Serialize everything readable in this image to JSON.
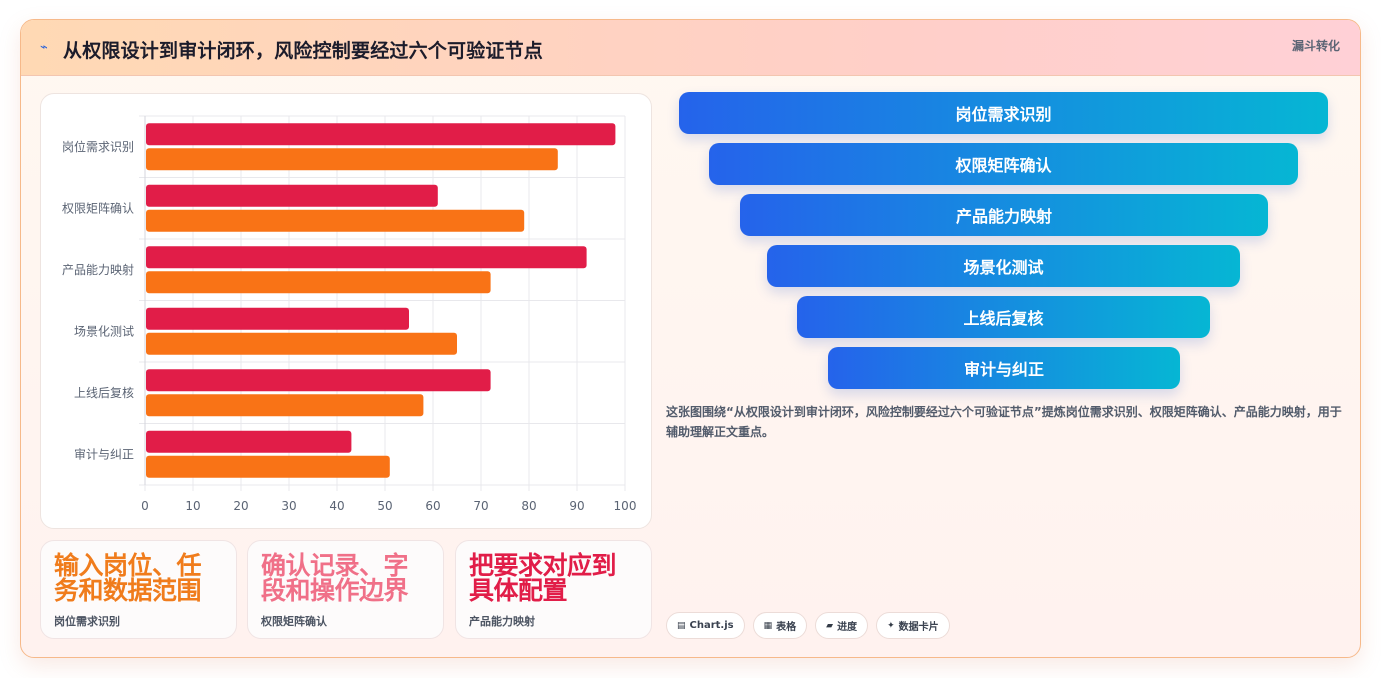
{
  "header": {
    "icon": "sparkle-icon",
    "title": "从权限设计到审计闭环，风险控制要经过六个可验证节点",
    "tag": "漏斗转化"
  },
  "chart_data": {
    "type": "bar",
    "orientation": "horizontal",
    "categories": [
      "岗位需求识别",
      "权限矩阵确认",
      "产品能力映射",
      "场景化测试",
      "上线后复核",
      "审计与纠正"
    ],
    "series": [
      {
        "color": "#e11d48",
        "values": [
          98,
          61,
          92,
          55,
          72,
          43
        ]
      },
      {
        "color": "#f97316",
        "values": [
          86,
          79,
          72,
          65,
          58,
          51
        ]
      }
    ],
    "xlim": [
      0,
      100
    ],
    "xticks": [
      0,
      10,
      20,
      30,
      40,
      50,
      60,
      70,
      80,
      90,
      100
    ],
    "grid": true
  },
  "tiles": [
    {
      "big": "输入岗位、任务和数据范围",
      "small": "岗位需求识别",
      "color": "#f07c1c"
    },
    {
      "big": "确认记录、字段和操作边界",
      "small": "权限矩阵确认",
      "color": "#f07088"
    },
    {
      "big": "把要求对应到具体配置",
      "small": "产品能力映射",
      "color": "#e11d48"
    }
  ],
  "funnel": [
    "岗位需求识别",
    "权限矩阵确认",
    "产品能力映射",
    "场景化测试",
    "上线后复核",
    "审计与纠正"
  ],
  "description": "这张图围绕“从权限设计到审计闭环，风险控制要经过六个可验证节点”提炼岗位需求识别、权限矩阵确认、产品能力映射，用于辅助理解正文重点。",
  "chips": [
    {
      "icon": "chart-icon",
      "glyph": "▤",
      "label": "Chart.js"
    },
    {
      "icon": "table-icon",
      "glyph": "▦",
      "label": "表格"
    },
    {
      "icon": "progress-icon",
      "glyph": "▰",
      "label": "进度"
    },
    {
      "icon": "data-card-icon",
      "glyph": "✦",
      "label": "数据卡片"
    }
  ]
}
